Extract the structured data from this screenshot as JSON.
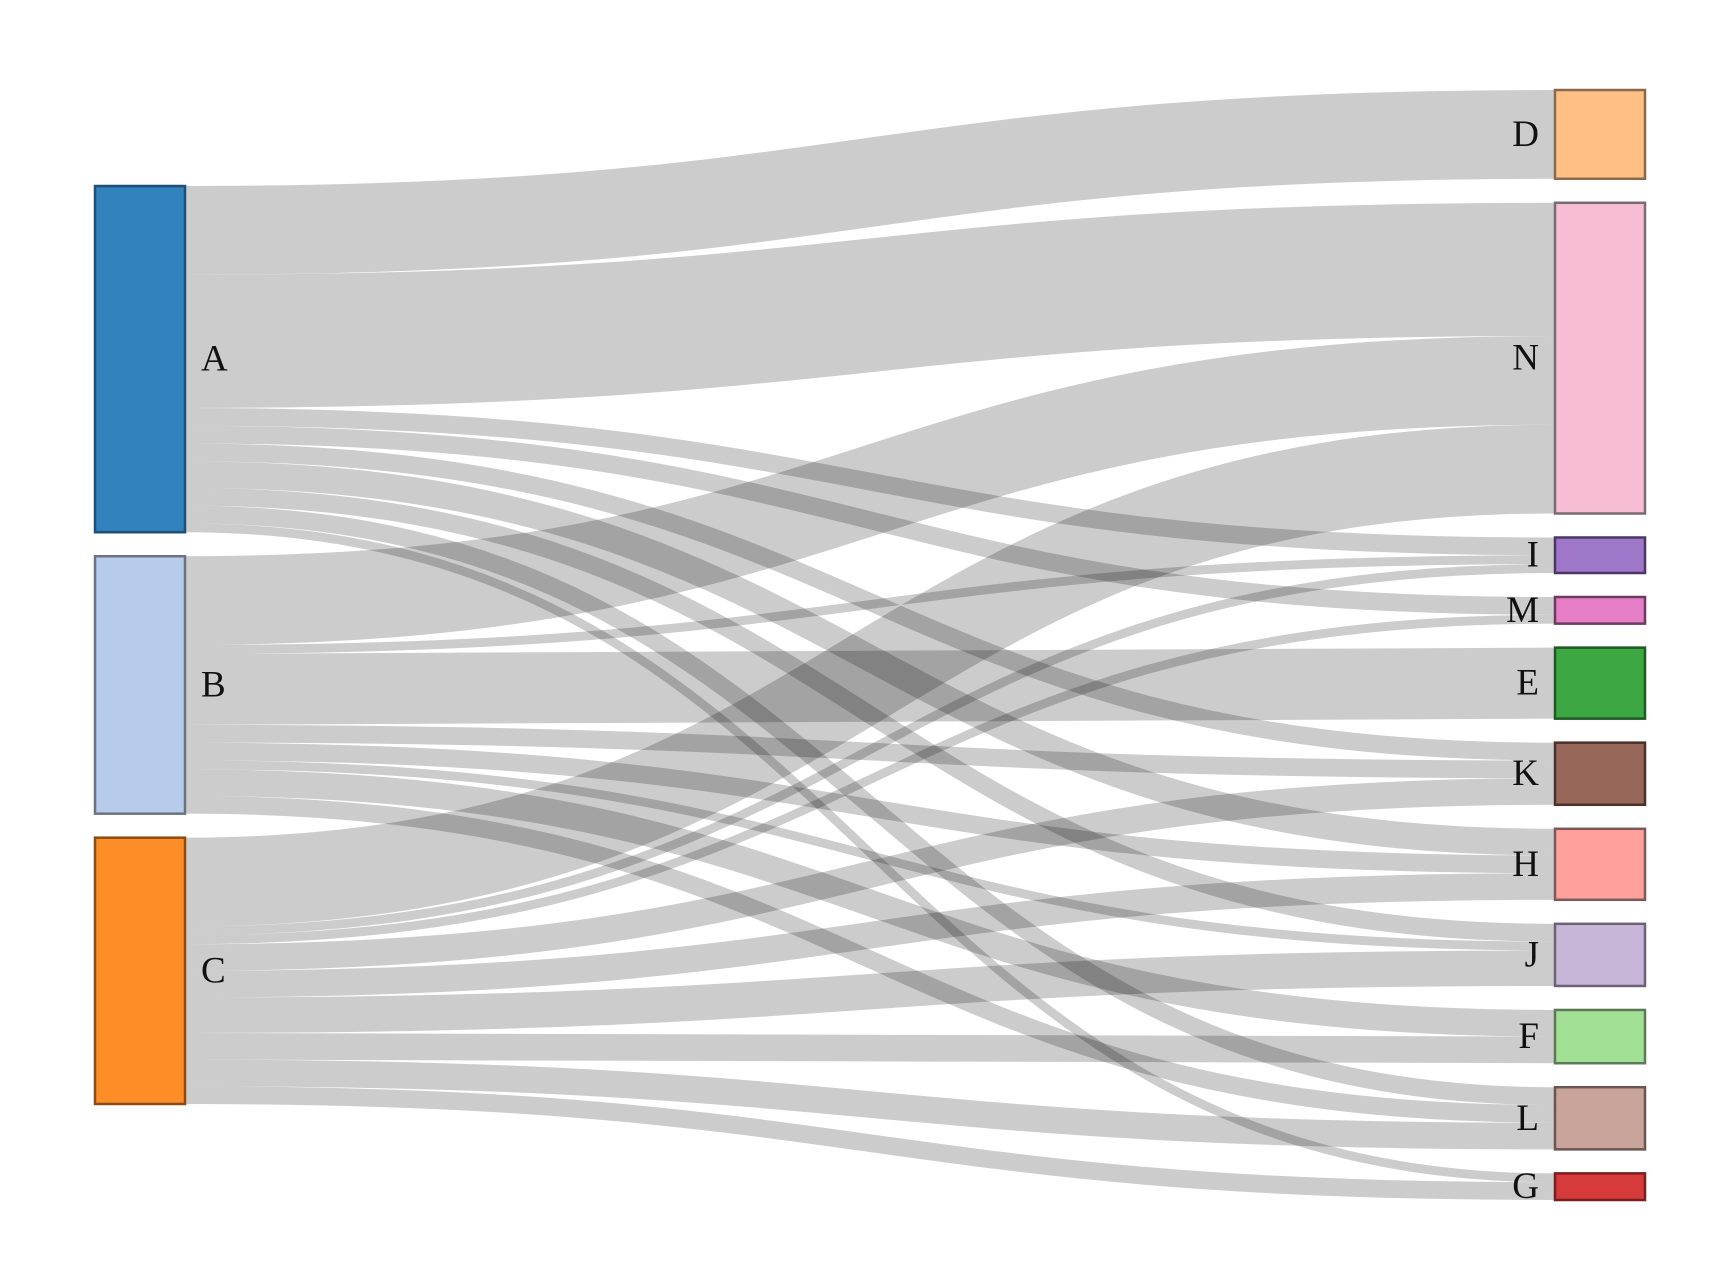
{
  "diagram": {
    "type": "sankey",
    "link_color": "#000000",
    "link_opacity": 0.2
  },
  "nodes": [
    {
      "id": "A",
      "label": "A",
      "column": "source",
      "color": "#3182bd",
      "stroke": "#1f4e77"
    },
    {
      "id": "B",
      "label": "B",
      "column": "source",
      "color": "#b7cbeb",
      "stroke": "#6b7280"
    },
    {
      "id": "C",
      "label": "C",
      "column": "source",
      "color": "#fd8d27",
      "stroke": "#8a4b16"
    },
    {
      "id": "D",
      "label": "D",
      "column": "target",
      "color": "#ffbf85",
      "stroke": "#8a6a4d"
    },
    {
      "id": "N",
      "label": "N",
      "column": "target",
      "color": "#f6bdd5",
      "stroke": "#7a6a72"
    },
    {
      "id": "I",
      "label": "I",
      "column": "target",
      "color": "#9f77c8",
      "stroke": "#4b3766"
    },
    {
      "id": "M",
      "label": "M",
      "column": "target",
      "color": "#e57dc7",
      "stroke": "#6b3b5e"
    },
    {
      "id": "E",
      "label": "E",
      "column": "target",
      "color": "#3da743",
      "stroke": "#1e5a22"
    },
    {
      "id": "K",
      "label": "K",
      "column": "target",
      "color": "#97675a",
      "stroke": "#4a322b"
    },
    {
      "id": "H",
      "label": "H",
      "column": "target",
      "color": "#ffa09c",
      "stroke": "#7a5a58"
    },
    {
      "id": "J",
      "label": "J",
      "column": "target",
      "color": "#c8b6d9",
      "stroke": "#6b6275"
    },
    {
      "id": "F",
      "label": "F",
      "column": "target",
      "color": "#a2e195",
      "stroke": "#5b7a55"
    },
    {
      "id": "L",
      "label": "L",
      "column": "target",
      "color": "#c9a49a",
      "stroke": "#6b5550"
    },
    {
      "id": "G",
      "label": "G",
      "column": "target",
      "color": "#d73a3a",
      "stroke": "#7a1f1f"
    }
  ],
  "links": [
    {
      "source": "A",
      "target": "D",
      "value": 10
    },
    {
      "source": "A",
      "target": "N",
      "value": 15
    },
    {
      "source": "A",
      "target": "I",
      "value": 2
    },
    {
      "source": "A",
      "target": "M",
      "value": 2
    },
    {
      "source": "A",
      "target": "K",
      "value": 2
    },
    {
      "source": "A",
      "target": "H",
      "value": 3
    },
    {
      "source": "A",
      "target": "J",
      "value": 2
    },
    {
      "source": "A",
      "target": "L",
      "value": 2
    },
    {
      "source": "A",
      "target": "G",
      "value": 1
    },
    {
      "source": "B",
      "target": "N",
      "value": 10
    },
    {
      "source": "B",
      "target": "I",
      "value": 1
    },
    {
      "source": "B",
      "target": "E",
      "value": 8
    },
    {
      "source": "B",
      "target": "K",
      "value": 2
    },
    {
      "source": "B",
      "target": "H",
      "value": 2
    },
    {
      "source": "B",
      "target": "J",
      "value": 1
    },
    {
      "source": "B",
      "target": "F",
      "value": 3
    },
    {
      "source": "B",
      "target": "L",
      "value": 2
    },
    {
      "source": "C",
      "target": "N",
      "value": 10
    },
    {
      "source": "C",
      "target": "I",
      "value": 1
    },
    {
      "source": "C",
      "target": "M",
      "value": 1
    },
    {
      "source": "C",
      "target": "K",
      "value": 3
    },
    {
      "source": "C",
      "target": "H",
      "value": 3
    },
    {
      "source": "C",
      "target": "J",
      "value": 4
    },
    {
      "source": "C",
      "target": "F",
      "value": 3
    },
    {
      "source": "C",
      "target": "L",
      "value": 3
    },
    {
      "source": "C",
      "target": "G",
      "value": 2
    }
  ]
}
